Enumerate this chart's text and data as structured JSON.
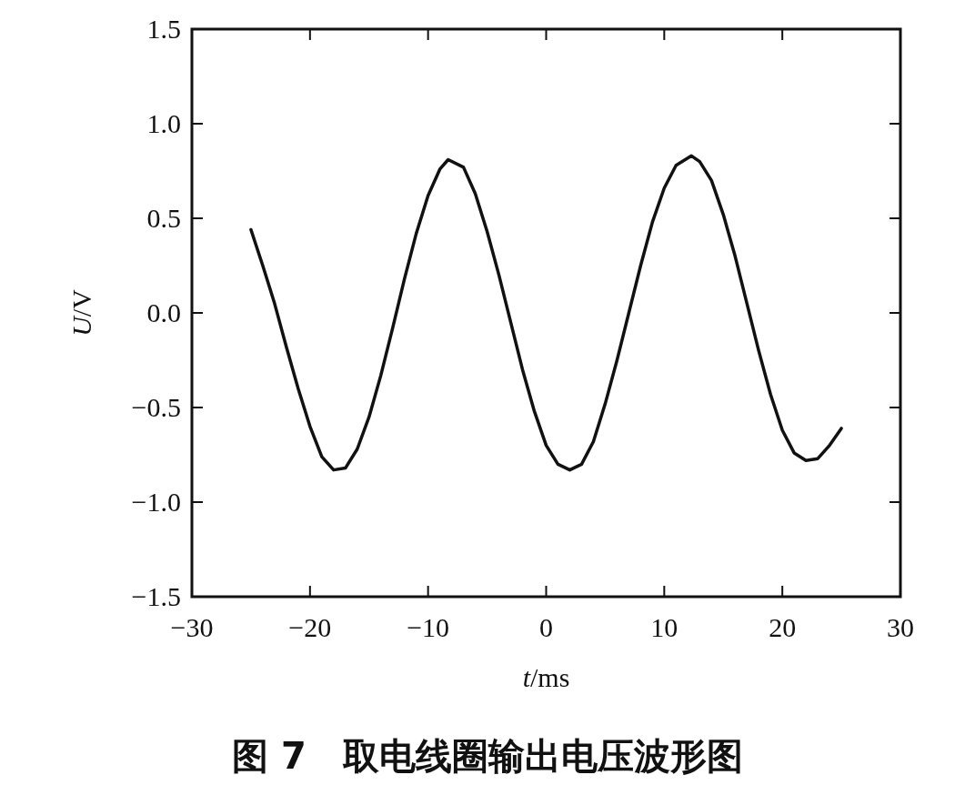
{
  "chart_data": {
    "type": "line",
    "title": "图 7　取电线圈输出电压波形图",
    "xlabel": "*t*/ms",
    "ylabel": "*U*/V",
    "xlim": [
      -30,
      30
    ],
    "ylim": [
      -1.5,
      1.5
    ],
    "xticks": [
      -30,
      -20,
      -10,
      0,
      10,
      20,
      30
    ],
    "yticks": [
      {
        "value": -1.5,
        "label": "−1.5"
      },
      {
        "value": -1.0,
        "label": "−1.0"
      },
      {
        "value": -0.5,
        "label": "−0.5"
      },
      {
        "value": 0,
        "label": "0.0"
      },
      {
        "value": 0.5,
        "label": "0.5"
      },
      {
        "value": 1.0,
        "label": "1.0"
      },
      {
        "value": 1.5,
        "label": "1.5"
      }
    ],
    "grid": false,
    "marker": "none",
    "line_style": "solid",
    "series": [
      {
        "color": "#111111",
        "x": [
          -25,
          -24,
          -23,
          -22,
          -21,
          -20,
          -19,
          -18,
          -17,
          -16,
          -15,
          -14,
          -13,
          -12,
          -11,
          -10,
          -9,
          -8.3,
          -7,
          -6,
          -5,
          -4,
          -3,
          -2,
          -1,
          0,
          1,
          2,
          3,
          4,
          5,
          6,
          7,
          8,
          9,
          10,
          11,
          12.3,
          13,
          14,
          15,
          16,
          17,
          18,
          19,
          20,
          21,
          22,
          23,
          24,
          25
        ],
        "values": [
          0.44,
          0.25,
          0.05,
          -0.18,
          -0.4,
          -0.6,
          -0.76,
          -0.83,
          -0.82,
          -0.72,
          -0.55,
          -0.33,
          -0.08,
          0.18,
          0.42,
          0.62,
          0.76,
          0.81,
          0.77,
          0.63,
          0.43,
          0.2,
          -0.05,
          -0.3,
          -0.52,
          -0.7,
          -0.8,
          -0.83,
          -0.8,
          -0.68,
          -0.48,
          -0.25,
          0.0,
          0.25,
          0.48,
          0.66,
          0.78,
          0.83,
          0.8,
          0.7,
          0.52,
          0.3,
          0.05,
          -0.2,
          -0.43,
          -0.62,
          -0.74,
          -0.78,
          -0.77,
          -0.7,
          -0.61
        ]
      }
    ]
  }
}
